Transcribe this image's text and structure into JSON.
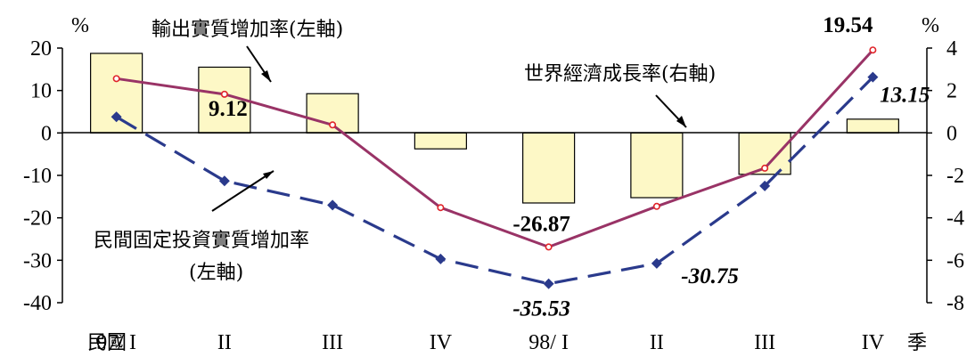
{
  "chart_data": {
    "type": "bar+line",
    "categories": [
      "97/ I",
      "II",
      "III",
      "IV",
      "98/ I",
      "II",
      "III",
      "IV"
    ],
    "x_prefix_label": "民國",
    "x_suffix_label": "季",
    "left_axis": {
      "unit": "%",
      "ylim": [
        -40,
        20
      ],
      "ticks": [
        20,
        10,
        0,
        -10,
        -20,
        -30,
        -40
      ]
    },
    "right_axis": {
      "unit": "%",
      "ylim": [
        -8,
        4
      ],
      "ticks": [
        4,
        2,
        0,
        -2,
        -4,
        -6,
        -8
      ]
    },
    "series": [
      {
        "name": "世界經濟成長率(右軸)",
        "kind": "bar",
        "axis": "right",
        "color": "#fdf8c6",
        "values": [
          3.75,
          3.1,
          1.85,
          -0.75,
          -3.3,
          -3.05,
          -1.95,
          0.65
        ]
      },
      {
        "name": "輸出實質增加率(左軸)",
        "kind": "line",
        "axis": "left",
        "color": "#993366",
        "values": [
          12.8,
          9.12,
          1.9,
          -17.6,
          -26.87,
          -17.3,
          -8.3,
          19.54
        ]
      },
      {
        "name": "民間固定投資實質增加率(左軸)",
        "kind": "dashed-line",
        "axis": "left",
        "color": "#2a3a8c",
        "values": [
          3.8,
          -11.3,
          -17.0,
          -29.7,
          -35.53,
          -30.75,
          -12.5,
          13.15
        ]
      }
    ],
    "annotations": [
      {
        "text": "輸出實質增加率(左軸)",
        "target": "輸出實質增加率(左軸)"
      },
      {
        "text": "世界經濟成長率(右軸)",
        "target": "世界經濟成長率(右軸)"
      },
      {
        "text_line1": "民間固定投資實質增加率",
        "text_line2": "(左軸)",
        "target": "民間固定投資實質增加率(左軸)"
      }
    ],
    "data_labels": [
      {
        "series": 1,
        "index": 1,
        "text": "9.12",
        "italic": false
      },
      {
        "series": 1,
        "index": 4,
        "text": "-26.87",
        "italic": false
      },
      {
        "series": 1,
        "index": 7,
        "text": "19.54",
        "italic": false
      },
      {
        "series": 2,
        "index": 4,
        "text": "-35.53",
        "italic": true
      },
      {
        "series": 2,
        "index": 5,
        "text": "-30.75",
        "italic": true
      },
      {
        "series": 2,
        "index": 7,
        "text": "13.15",
        "italic": true
      }
    ]
  }
}
